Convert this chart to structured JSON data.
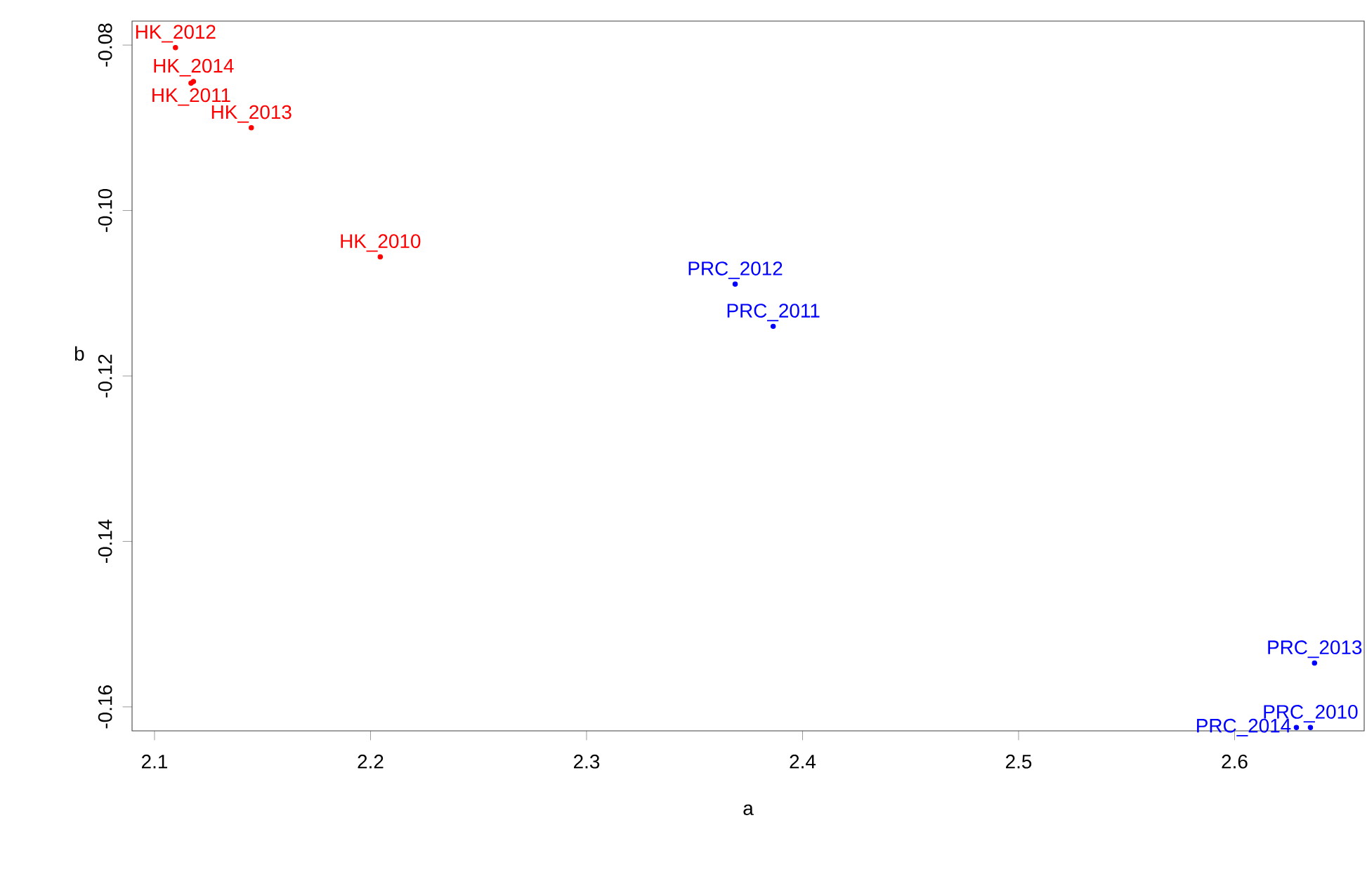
{
  "chart_data": {
    "type": "scatter",
    "xlabel": "a",
    "ylabel": "b",
    "marker": "circle",
    "grid": false,
    "legend": false,
    "xlim": [
      2.0896,
      2.66
    ],
    "ylim": [
      -0.1629,
      -0.0771
    ],
    "xticks": [
      2.1,
      2.2,
      2.3,
      2.4,
      2.5,
      2.6
    ],
    "yticks": [
      {
        "value": -0.16,
        "label": "-0.16"
      },
      {
        "value": -0.14,
        "label": "-0.14"
      },
      {
        "value": -0.12,
        "label": "-0.12"
      },
      {
        "value": -0.1,
        "label": "-0.10"
      },
      {
        "value": -0.08,
        "label": "-0.08"
      }
    ],
    "series": [
      {
        "name": "HK_2010",
        "color": "#ff0000",
        "x": [
          2.2045
        ],
        "values": [
          -0.1056
        ]
      },
      {
        "name": "HK_2011",
        "color": "#ff0000",
        "x": [
          2.1169
        ],
        "values": [
          -0.0846
        ]
      },
      {
        "name": "HK_2012",
        "color": "#ff0000",
        "x": [
          2.1097
        ],
        "values": [
          -0.0803
        ]
      },
      {
        "name": "HK_2013",
        "color": "#ff0000",
        "x": [
          2.1448
        ],
        "values": [
          -0.09
        ]
      },
      {
        "name": "HK_2014",
        "color": "#ff0000",
        "x": [
          2.118
        ],
        "values": [
          -0.0844
        ]
      },
      {
        "name": "PRC_2010",
        "color": "#0000ff",
        "x": [
          2.6351
        ],
        "values": [
          -0.1625
        ]
      },
      {
        "name": "PRC_2011",
        "color": "#0000ff",
        "x": [
          2.3864
        ],
        "values": [
          -0.114
        ]
      },
      {
        "name": "PRC_2012",
        "color": "#0000ff",
        "x": [
          2.3688
        ],
        "values": [
          -0.1089
        ]
      },
      {
        "name": "PRC_2013",
        "color": "#0000ff",
        "x": [
          2.637
        ],
        "values": [
          -0.1547
        ]
      },
      {
        "name": "PRC_2014",
        "color": "#0000ff",
        "x": [
          2.6286
        ],
        "values": [
          -0.1625
        ]
      }
    ]
  }
}
